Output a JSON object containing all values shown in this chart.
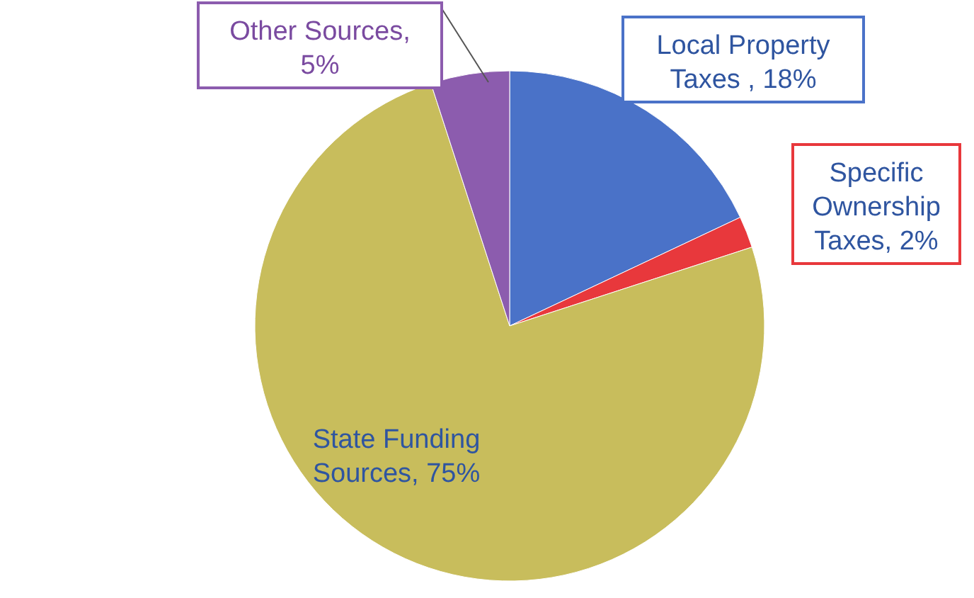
{
  "chart_data": {
    "type": "pie",
    "categories": [
      "Local Property Taxes ",
      "Specific Ownership Taxes",
      "State Funding Sources",
      "Other Sources"
    ],
    "values": [
      18,
      2,
      75,
      5
    ],
    "value_labels": [
      ", 18%",
      ", 2%",
      ", 75%",
      ", 5%"
    ],
    "colors": [
      "#4a72c8",
      "#e8383c",
      "#c8bd5c",
      "#8c5cae"
    ]
  }
}
